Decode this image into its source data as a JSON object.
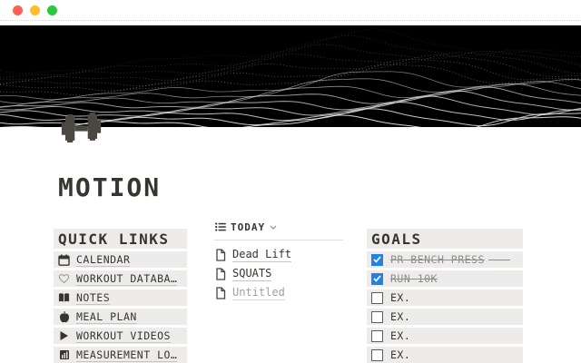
{
  "window": {
    "traffic_lights": [
      {
        "name": "close",
        "color": "#ff5f57"
      },
      {
        "name": "minimize",
        "color": "#febc2e"
      },
      {
        "name": "zoom",
        "color": "#28c840"
      }
    ]
  },
  "banner": {
    "background": "#000000",
    "line_color": "#e8e8e8",
    "style": "wireframe-ridgeline"
  },
  "page": {
    "icon": "dumbbell-icon",
    "icon_color": "#4a4841",
    "title": "MOTION"
  },
  "quick_links": {
    "title": "QUICK LINKS",
    "items": [
      {
        "icon": "calendar-icon",
        "label": "CALENDAR"
      },
      {
        "icon": "heart-icon",
        "label": "WORKOUT DATABA…"
      },
      {
        "icon": "book-icon",
        "label": "NOTES"
      },
      {
        "icon": "apple-icon",
        "label": "MEAL PLAN"
      },
      {
        "icon": "play-icon",
        "label": "WORKOUT VIDEOS"
      },
      {
        "icon": "ruler-icon",
        "label": "MEASUREMENT LO…"
      }
    ]
  },
  "today": {
    "view_icon": "list-view-icon",
    "view_label": "TODAY",
    "chevron": "chevron-down-icon",
    "items": [
      {
        "icon": "page-icon",
        "label": "Dead Lift",
        "muted": false
      },
      {
        "icon": "page-icon",
        "label": "SQUATS",
        "muted": false
      },
      {
        "icon": "page-icon",
        "label": "Untitled",
        "muted": true
      }
    ]
  },
  "goals": {
    "title": "GOALS",
    "checkbox_color": "#2383e2",
    "items": [
      {
        "label": "PR BENCH PRESS",
        "checked": true,
        "strike_tail": true
      },
      {
        "label": "RUN 10K",
        "checked": true,
        "strike_tail": false
      },
      {
        "label": "EX.",
        "checked": false,
        "strike_tail": false
      },
      {
        "label": "EX.",
        "checked": false,
        "strike_tail": false
      },
      {
        "label": "EX.",
        "checked": false,
        "strike_tail": false
      },
      {
        "label": "EX.",
        "checked": false,
        "strike_tail": false
      }
    ]
  }
}
